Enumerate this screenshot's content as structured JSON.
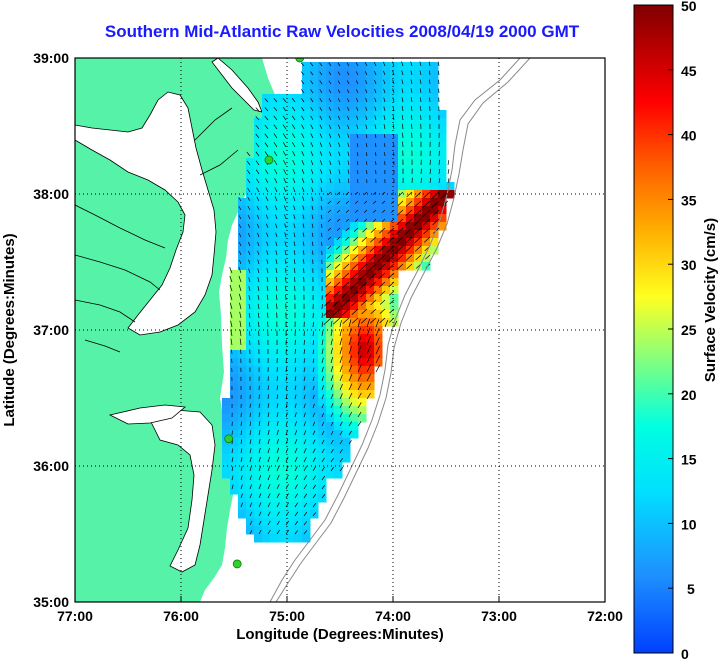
{
  "title": "Southern Mid-Atlantic Raw Velocities 2008/04/19 2000 GMT",
  "axes": {
    "xlabel": "Longitude (Degrees:Minutes)",
    "ylabel": "Latitude (Degrees:Minutes)",
    "xticks": [
      "77:00",
      "76:00",
      "75:00",
      "74:00",
      "73:00",
      "72:00"
    ],
    "yticks": [
      "39:00",
      "38:00",
      "37:00",
      "36:00",
      "35:00"
    ]
  },
  "colorbar": {
    "label": "Surface Velocity (cm/s)",
    "ticks": [
      "50",
      "45",
      "40",
      "35",
      "30",
      "25",
      "20",
      "15",
      "10",
      "5",
      "0"
    ],
    "range": [
      0,
      50
    ]
  },
  "colors": {
    "land": "#55f2a8",
    "water_bg": "#ffffff",
    "title": "#1a1aff",
    "station": "#2fd12f",
    "bathymetry": "#8a8a8a"
  },
  "map": {
    "lon_range": [
      -77.0,
      -72.0
    ],
    "lat_range": [
      35.0,
      39.0
    ],
    "grid": true,
    "hf_radar_stations": [
      {
        "lon": -74.88,
        "lat": 39.0
      },
      {
        "lon": -75.17,
        "lat": 38.25
      },
      {
        "lon": -75.55,
        "lat": 36.2
      },
      {
        "lon": -75.47,
        "lat": 35.28
      }
    ]
  }
}
